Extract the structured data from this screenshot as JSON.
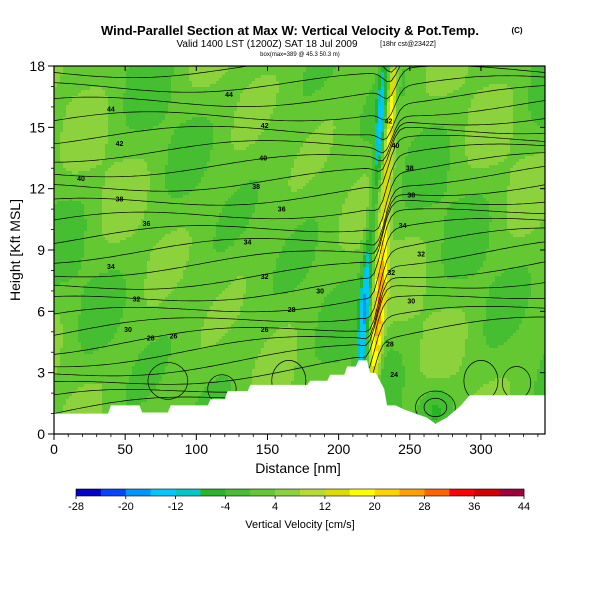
{
  "chart_data": {
    "type": "contour",
    "title": "Wind-Parallel Section at Max W: Vertical Velocity & Pot.Temp.",
    "title_suffix": "(C)",
    "subtitle": "Valid 1400 LST (1200Z) SAT 18 Jul 2009",
    "subtitle_suffix": "[18hr cst@2342Z]",
    "subtitle2": "box(max=389 @ 45.3 50.3 m)",
    "xlabel": "Distance [nm]",
    "ylabel": "Height [Kft MSL]",
    "xlim": [
      0,
      345
    ],
    "ylim": [
      0,
      18
    ],
    "xticks": [
      "0",
      "50",
      "100",
      "150",
      "200",
      "250",
      "300"
    ],
    "yticks": [
      "0",
      "3",
      "6",
      "9",
      "12",
      "15",
      "18"
    ],
    "colorbar": {
      "label": "Vertical Velocity [cm/s]",
      "ticks": [
        "-28",
        "-20",
        "-12",
        "-4",
        "4",
        "12",
        "20",
        "28",
        "36",
        "44"
      ],
      "levels": [
        -28,
        -24,
        -20,
        -16,
        -12,
        -8,
        -4,
        0,
        4,
        8,
        12,
        16,
        20,
        24,
        28,
        32,
        36,
        40,
        44
      ],
      "colors": [
        "#0000c8",
        "#0046ff",
        "#0096ff",
        "#00c8ff",
        "#00c8c8",
        "#28b428",
        "#46be32",
        "#64c832",
        "#8cd23c",
        "#b4dc32",
        "#dcdc00",
        "#ffff00",
        "#ffd200",
        "#ffa000",
        "#ff6400",
        "#ff0000",
        "#d20000",
        "#a0003c"
      ]
    },
    "isentrope_labels": [
      {
        "x": 40,
        "y": 15.9,
        "text": "44"
      },
      {
        "x": 123,
        "y": 16.6,
        "text": "44"
      },
      {
        "x": 46,
        "y": 14.2,
        "text": "42"
      },
      {
        "x": 148,
        "y": 15.1,
        "text": "42"
      },
      {
        "x": 19,
        "y": 12.5,
        "text": "40"
      },
      {
        "x": 147,
        "y": 13.5,
        "text": "40"
      },
      {
        "x": 46,
        "y": 11.5,
        "text": "38"
      },
      {
        "x": 142,
        "y": 12.1,
        "text": "38"
      },
      {
        "x": 65,
        "y": 10.3,
        "text": "36"
      },
      {
        "x": 160,
        "y": 11.0,
        "text": "36"
      },
      {
        "x": 40,
        "y": 8.2,
        "text": "34"
      },
      {
        "x": 136,
        "y": 9.4,
        "text": "34"
      },
      {
        "x": 58,
        "y": 6.6,
        "text": "32"
      },
      {
        "x": 148,
        "y": 7.7,
        "text": "32"
      },
      {
        "x": 187,
        "y": 7.0,
        "text": "30"
      },
      {
        "x": 52,
        "y": 5.1,
        "text": "30"
      },
      {
        "x": 167,
        "y": 6.1,
        "text": "28"
      },
      {
        "x": 68,
        "y": 4.7,
        "text": "28"
      },
      {
        "x": 84,
        "y": 4.8,
        "text": "26"
      },
      {
        "x": 148,
        "y": 5.1,
        "text": "26"
      },
      {
        "x": 235,
        "y": 15.3,
        "text": "42"
      },
      {
        "x": 240,
        "y": 14.1,
        "text": "40"
      },
      {
        "x": 250,
        "y": 13.0,
        "text": "38"
      },
      {
        "x": 251,
        "y": 11.7,
        "text": "38"
      },
      {
        "x": 245,
        "y": 10.2,
        "text": "34"
      },
      {
        "x": 258,
        "y": 8.8,
        "text": "32"
      },
      {
        "x": 237,
        "y": 7.9,
        "text": "32"
      },
      {
        "x": 251,
        "y": 6.5,
        "text": "30"
      },
      {
        "x": 236,
        "y": 4.4,
        "text": "28"
      },
      {
        "x": 239,
        "y": 2.9,
        "text": "24"
      }
    ]
  }
}
